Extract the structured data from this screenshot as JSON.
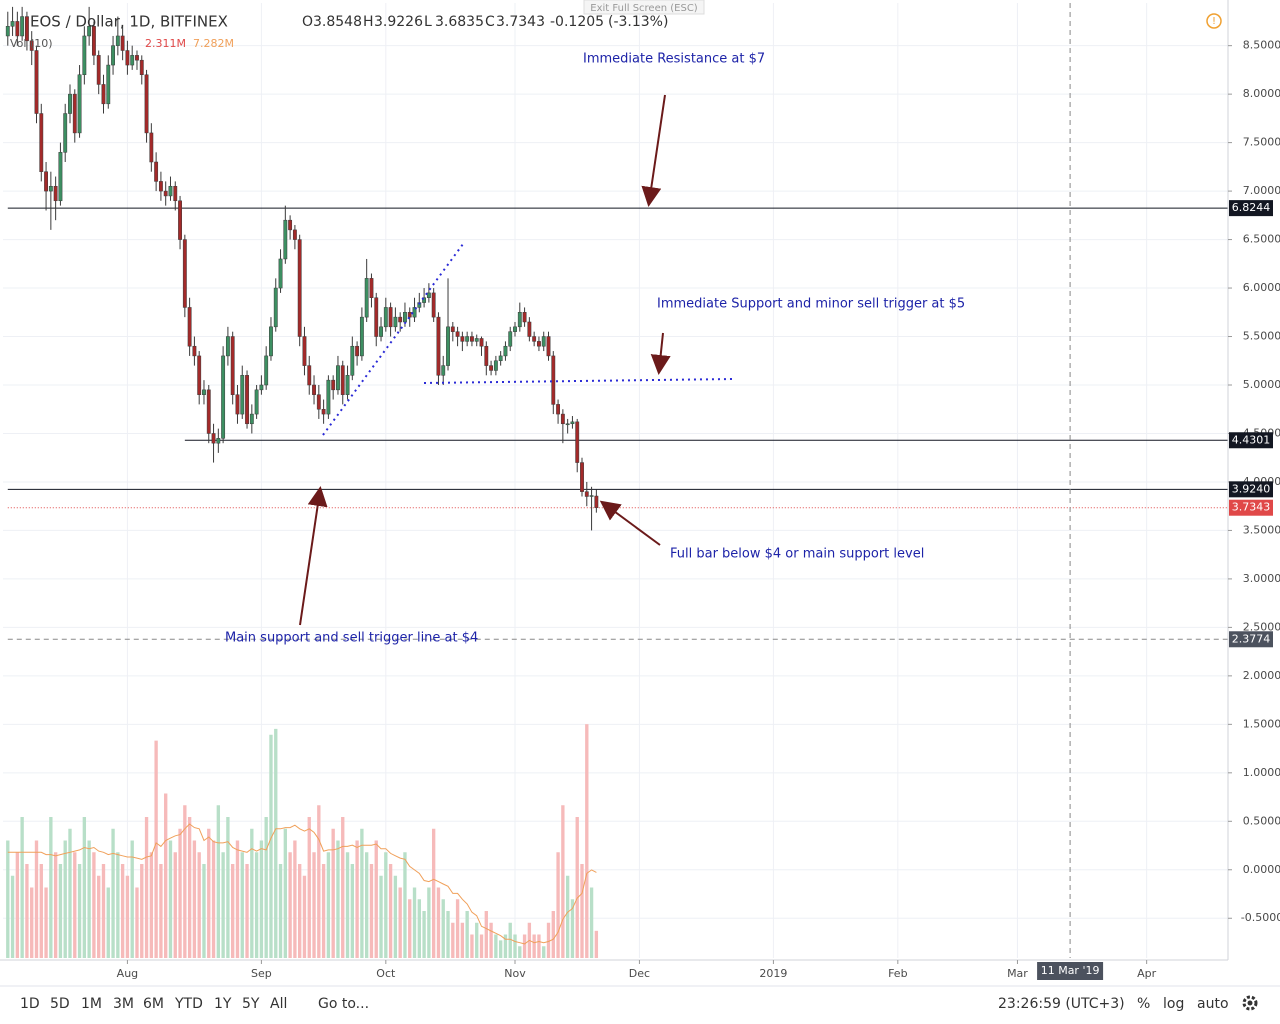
{
  "header": {
    "symbol": "EOS / Dollar, 1D, BITFINEX",
    "exit_fullscreen": "Exit Full Screen (ESC)",
    "fields": [
      {
        "letter": "O",
        "value": 3.8548
      },
      {
        "letter": "H",
        "value": 3.9226
      },
      {
        "letter": "L",
        "value": 3.6835
      },
      {
        "letter": "C",
        "value": 3.7343
      }
    ],
    "change": -0.1205,
    "change_percent": "(-3.13%)",
    "volume_label": "Vol (10)",
    "volume_value": "2.311M",
    "volume_ma": "7.282M"
  },
  "annotations": [
    "Immediate Resistance at $7",
    "Immediate Support and minor sell trigger at $5",
    "Full bar below $4 or main support level",
    "Main support and sell trigger line at $4"
  ],
  "toolbar": {
    "ranges": [
      "1D",
      "5D",
      "1M",
      "3M",
      "6M",
      "YTD",
      "1Y",
      "5Y",
      "All"
    ],
    "goto": "Go to...",
    "time": "23:26:59 (UTC+3)",
    "options": [
      "%",
      "log",
      "auto"
    ]
  },
  "chart_data": {
    "type": "candlestick",
    "up_color": "#3d8f62",
    "down_color": "#a32a2a",
    "wick_color": "#3a3a3a",
    "volume_up_color": "#b8dfc8",
    "volume_down_color": "#f6baba",
    "ma_color": "#f0a05a",
    "grid": true,
    "xlim": [
      -1,
      255
    ],
    "xticks": [
      {
        "value": 25,
        "label": "Aug"
      },
      {
        "value": 53,
        "label": "Sep"
      },
      {
        "value": 79,
        "label": "Oct"
      },
      {
        "value": 106,
        "label": "Nov"
      },
      {
        "value": 132,
        "label": "Dec"
      },
      {
        "value": 160,
        "label": "2019"
      },
      {
        "value": 186,
        "label": "Feb"
      },
      {
        "value": 211,
        "label": "Mar"
      },
      {
        "value": 238,
        "label": "Apr"
      }
    ],
    "crosshair_x": {
      "value": 222,
      "label": "11 Mar '19"
    },
    "ylim": [
      -0.91,
      8.94
    ],
    "yticks": [
      {
        "value": 8.5,
        "label": "8.5000"
      },
      {
        "value": 8,
        "label": "8.0000"
      },
      {
        "value": 7.5,
        "label": "7.5000"
      },
      {
        "value": 7,
        "label": "7.0000"
      },
      {
        "value": 6.5,
        "label": "6.5000"
      },
      {
        "value": 6,
        "label": "6.0000"
      },
      {
        "value": 5.5,
        "label": "5.5000"
      },
      {
        "value": 5,
        "label": "5.0000"
      },
      {
        "value": 4.5,
        "label": "4.5000"
      },
      {
        "value": 4,
        "label": "4.0000"
      },
      {
        "value": 3.5,
        "label": "3.5000"
      },
      {
        "value": 3,
        "label": "3.0000"
      },
      {
        "value": 2.5,
        "label": "2.5000"
      },
      {
        "value": 2,
        "label": "2.0000"
      },
      {
        "value": 1.5,
        "label": "1.5000"
      },
      {
        "value": 1,
        "label": "1.0000"
      },
      {
        "value": 0.5,
        "label": "0.5000"
      },
      {
        "value": 0,
        "label": "0.0000"
      },
      {
        "value": -0.5,
        "label": "-0.5000"
      }
    ],
    "levels": [
      {
        "value": 6.8244,
        "color": "#131722",
        "line": "solid",
        "from": 0
      },
      {
        "value": 4.4301,
        "color": "#131722",
        "line": "solid",
        "from": 37
      },
      {
        "value": {
          "value": 3.924,
          "label": "3.9240"
        },
        "color": "#131722",
        "line": "solid",
        "from": 0
      },
      {
        "value": 3.7343,
        "color": "#e04848",
        "line": "dotted",
        "from": 0
      },
      {
        "value": 2.3774,
        "color": "#4c525e",
        "line": "dashed",
        "from": 0
      }
    ],
    "y2lim": [
      0,
      20
    ],
    "candles": [
      [
        8.6,
        8.85,
        8.5,
        8.7
      ],
      [
        8.7,
        8.9,
        8.6,
        8.75
      ],
      [
        8.75,
        8.85,
        8.5,
        8.6
      ],
      [
        8.6,
        8.9,
        8.55,
        8.8
      ],
      [
        8.8,
        8.85,
        8.45,
        8.55
      ],
      [
        8.55,
        8.65,
        8.3,
        8.45
      ],
      [
        8.45,
        8.5,
        7.7,
        7.8
      ],
      [
        7.8,
        7.9,
        7.1,
        7.2
      ],
      [
        7.2,
        7.3,
        6.8,
        7.0
      ],
      [
        7.0,
        7.2,
        6.6,
        7.05
      ],
      [
        7.05,
        7.15,
        6.7,
        6.9
      ],
      [
        6.9,
        7.5,
        6.85,
        7.4
      ],
      [
        7.4,
        7.9,
        7.3,
        7.8
      ],
      [
        7.8,
        8.1,
        7.7,
        8.0
      ],
      [
        8.0,
        8.05,
        7.5,
        7.6
      ],
      [
        7.6,
        8.3,
        7.55,
        8.2
      ],
      [
        8.2,
        8.7,
        8.1,
        8.6
      ],
      [
        8.6,
        8.9,
        8.5,
        8.7
      ],
      [
        8.7,
        8.75,
        8.3,
        8.4
      ],
      [
        8.4,
        8.45,
        8.0,
        8.1
      ],
      [
        8.1,
        8.2,
        7.8,
        7.9
      ],
      [
        7.9,
        8.4,
        7.85,
        8.3
      ],
      [
        8.3,
        8.6,
        8.2,
        8.5
      ],
      [
        8.5,
        8.8,
        8.4,
        8.6
      ],
      [
        8.6,
        8.7,
        8.35,
        8.45
      ],
      [
        8.45,
        8.55,
        8.2,
        8.3
      ],
      [
        8.3,
        8.5,
        8.25,
        8.4
      ],
      [
        8.4,
        8.45,
        8.25,
        8.35
      ],
      [
        8.35,
        8.4,
        8.1,
        8.2
      ],
      [
        8.2,
        8.25,
        7.5,
        7.6
      ],
      [
        7.6,
        7.7,
        7.2,
        7.3
      ],
      [
        7.3,
        7.4,
        7.0,
        7.1
      ],
      [
        7.1,
        7.2,
        6.9,
        7.0
      ],
      [
        7.0,
        7.1,
        6.85,
        6.95
      ],
      [
        6.95,
        7.15,
        6.9,
        7.05
      ],
      [
        7.05,
        7.1,
        6.8,
        6.9
      ],
      [
        6.9,
        6.95,
        6.4,
        6.5
      ],
      [
        6.5,
        6.55,
        5.7,
        5.8
      ],
      [
        5.8,
        5.9,
        5.3,
        5.4
      ],
      [
        5.4,
        5.5,
        5.2,
        5.3
      ],
      [
        5.3,
        5.35,
        4.8,
        4.9
      ],
      [
        4.9,
        5.05,
        4.8,
        4.95
      ],
      [
        4.95,
        5.0,
        4.4,
        4.5
      ],
      [
        4.5,
        4.6,
        4.2,
        4.4
      ],
      [
        4.4,
        4.55,
        4.3,
        4.45
      ],
      [
        4.45,
        5.4,
        4.4,
        5.3
      ],
      [
        5.3,
        5.6,
        5.2,
        5.5
      ],
      [
        5.5,
        5.55,
        4.8,
        4.9
      ],
      [
        4.9,
        5.0,
        4.6,
        4.7
      ],
      [
        4.7,
        5.2,
        4.65,
        5.1
      ],
      [
        5.1,
        5.15,
        4.55,
        4.6
      ],
      [
        4.6,
        4.8,
        4.5,
        4.7
      ],
      [
        4.7,
        5.0,
        4.65,
        4.95
      ],
      [
        4.95,
        5.1,
        4.9,
        5.0
      ],
      [
        5.0,
        5.4,
        4.95,
        5.3
      ],
      [
        5.3,
        5.7,
        5.25,
        5.6
      ],
      [
        5.6,
        6.1,
        5.55,
        6.0
      ],
      [
        6.0,
        6.4,
        5.95,
        6.3
      ],
      [
        6.3,
        6.85,
        6.25,
        6.7
      ],
      [
        6.7,
        6.75,
        6.5,
        6.6
      ],
      [
        6.6,
        6.65,
        6.4,
        6.5
      ],
      [
        6.5,
        6.55,
        5.4,
        5.5
      ],
      [
        5.5,
        5.6,
        5.1,
        5.2
      ],
      [
        5.2,
        5.3,
        4.9,
        5.0
      ],
      [
        5.0,
        5.1,
        4.8,
        4.9
      ],
      [
        4.9,
        5.0,
        4.65,
        4.75
      ],
      [
        4.75,
        4.85,
        4.6,
        4.7
      ],
      [
        4.7,
        5.1,
        4.65,
        5.05
      ],
      [
        5.05,
        5.1,
        4.85,
        4.95
      ],
      [
        4.95,
        5.3,
        4.9,
        5.2
      ],
      [
        5.2,
        5.25,
        4.8,
        4.9
      ],
      [
        4.9,
        5.2,
        4.85,
        5.1
      ],
      [
        5.1,
        5.5,
        5.05,
        5.4
      ],
      [
        5.4,
        5.45,
        5.2,
        5.3
      ],
      [
        5.3,
        5.8,
        5.25,
        5.7
      ],
      [
        5.7,
        6.3,
        5.65,
        6.1
      ],
      [
        6.1,
        6.15,
        5.8,
        5.9
      ],
      [
        5.9,
        5.95,
        5.4,
        5.5
      ],
      [
        5.5,
        5.7,
        5.45,
        5.6
      ],
      [
        5.6,
        5.9,
        5.55,
        5.8
      ],
      [
        5.8,
        5.85,
        5.5,
        5.6
      ],
      [
        5.6,
        5.8,
        5.55,
        5.7
      ],
      [
        5.7,
        5.75,
        5.55,
        5.65
      ],
      [
        5.65,
        5.85,
        5.6,
        5.75
      ],
      [
        5.75,
        5.8,
        5.6,
        5.7
      ],
      [
        5.7,
        5.9,
        5.65,
        5.8
      ],
      [
        5.8,
        5.95,
        5.75,
        5.85
      ],
      [
        5.85,
        6.0,
        5.8,
        5.9
      ],
      [
        5.9,
        6.05,
        5.85,
        5.95
      ],
      [
        5.95,
        6.0,
        5.65,
        5.7
      ],
      [
        5.7,
        5.75,
        5.0,
        5.1
      ],
      [
        5.1,
        5.3,
        5.0,
        5.2
      ],
      [
        5.2,
        6.1,
        5.15,
        5.6
      ],
      [
        5.6,
        5.65,
        5.45,
        5.55
      ],
      [
        5.55,
        5.6,
        5.4,
        5.5
      ],
      [
        5.5,
        5.55,
        5.35,
        5.45
      ],
      [
        5.45,
        5.55,
        5.4,
        5.5
      ],
      [
        5.5,
        5.55,
        5.4,
        5.45
      ],
      [
        5.45,
        5.52,
        5.4,
        5.48
      ],
      [
        5.48,
        5.5,
        5.3,
        5.4
      ],
      [
        5.4,
        5.45,
        5.1,
        5.2
      ],
      [
        5.2,
        5.25,
        5.1,
        5.15
      ],
      [
        5.15,
        5.3,
        5.1,
        5.25
      ],
      [
        5.25,
        5.35,
        5.2,
        5.3
      ],
      [
        5.3,
        5.45,
        5.25,
        5.4
      ],
      [
        5.4,
        5.6,
        5.35,
        5.55
      ],
      [
        5.55,
        5.65,
        5.5,
        5.6
      ],
      [
        5.6,
        5.85,
        5.55,
        5.75
      ],
      [
        5.75,
        5.8,
        5.6,
        5.65
      ],
      [
        5.65,
        5.7,
        5.45,
        5.5
      ],
      [
        5.5,
        5.55,
        5.4,
        5.45
      ],
      [
        5.45,
        5.5,
        5.35,
        5.4
      ],
      [
        5.4,
        5.55,
        5.35,
        5.5
      ],
      [
        5.5,
        5.55,
        5.25,
        5.3
      ],
      [
        5.3,
        5.35,
        4.7,
        4.8
      ],
      [
        4.8,
        4.85,
        4.6,
        4.7
      ],
      [
        4.7,
        4.75,
        4.4,
        4.6
      ],
      [
        4.6,
        4.65,
        4.5,
        4.6
      ],
      [
        4.6,
        4.68,
        4.55,
        4.62
      ],
      [
        4.62,
        4.65,
        4.1,
        4.2
      ],
      [
        4.2,
        4.25,
        3.85,
        3.9
      ],
      [
        3.9,
        4.0,
        3.75,
        3.85
      ],
      [
        3.85,
        3.95,
        3.5,
        3.86
      ],
      [
        3.8548,
        3.9226,
        3.6835,
        3.7343
      ]
    ],
    "volume": [
      10,
      7,
      9,
      12,
      8,
      6,
      10,
      8,
      6,
      12,
      9,
      8,
      10,
      11,
      9,
      8,
      12,
      10,
      9,
      7,
      8,
      6,
      11,
      9,
      8,
      7,
      10,
      6,
      8,
      12,
      9,
      18.5,
      8,
      14,
      10,
      9,
      11,
      13,
      12,
      10,
      9,
      8,
      11,
      10,
      13,
      9,
      12,
      8,
      10,
      9,
      8,
      11,
      9,
      10,
      12,
      19,
      19.5,
      8,
      11,
      9,
      10,
      8,
      7,
      12,
      9,
      13,
      8,
      9,
      11,
      10,
      12,
      9,
      8,
      10,
      11,
      9,
      8,
      10,
      7,
      9,
      8,
      7,
      6,
      9,
      5,
      6,
      5,
      4,
      6,
      11,
      6,
      5,
      4,
      3,
      5,
      3,
      4,
      2,
      3,
      2,
      4,
      3,
      2,
      1.5,
      2,
      3,
      2,
      1,
      2,
      3,
      2,
      2,
      1,
      3,
      4,
      9,
      13,
      7,
      5,
      12,
      8,
      19.9,
      6,
      2.311
    ],
    "volume_ma": [
      9,
      9,
      9,
      9,
      9,
      9,
      9,
      9,
      8.8,
      8.8,
      8.7,
      8.8,
      8.9,
      9,
      9.1,
      9.2,
      9.4,
      9.3,
      9.4,
      9.1,
      9,
      8.8,
      8.9,
      8.8,
      8.7,
      8.6,
      8.6,
      8.5,
      8.4,
      8.6,
      8.7,
      9.8,
      9.5,
      10,
      10.2,
      10.4,
      10.5,
      11,
      11.4,
      11.1,
      11,
      10,
      10.3,
      9.9,
      9.8,
      9.8,
      9.9,
      9.4,
      9.2,
      9.1,
      9,
      9.3,
      9.1,
      9.3,
      9.2,
      10.2,
      11,
      11,
      11.1,
      11.1,
      11.3,
      11,
      10.8,
      11,
      10.7,
      10.1,
      9.1,
      9.2,
      9.2,
      9.3,
      9.5,
      9.5,
      9.6,
      9.4,
      9.6,
      9.6,
      9.6,
      9.7,
      9.3,
      9.3,
      8.9,
      8.7,
      8.5,
      8.4,
      7.8,
      7.5,
      7.2,
      6.6,
      6.5,
      6.7,
      6.5,
      6.3,
      6.1,
      5.5,
      5.5,
      5,
      4.6,
      3.9,
      3.6,
      2.7,
      2.5,
      2.3,
      2.1,
      1.9,
      1.6,
      1.6,
      1.4,
      1.3,
      1.2,
      1.5,
      1.3,
      1.4,
      1.3,
      1.4,
      1.6,
      2.2,
      3.3,
      3.9,
      4.2,
      5.1,
      5.5,
      7.2,
      7.5,
      7.282
    ]
  }
}
